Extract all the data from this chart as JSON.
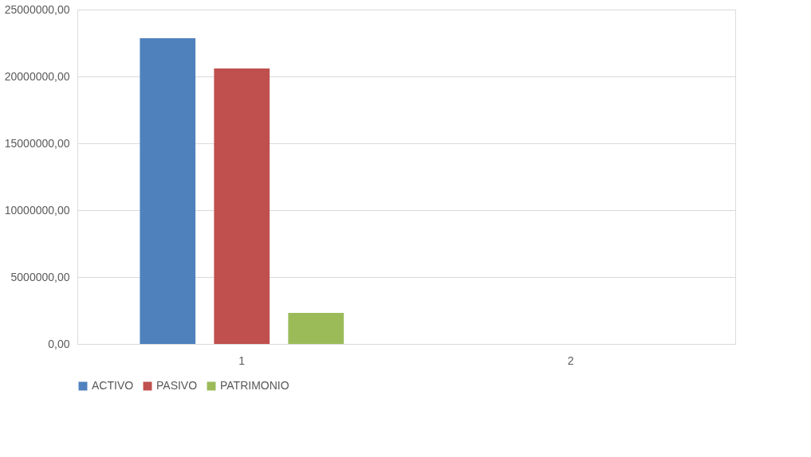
{
  "chart_data": {
    "type": "bar",
    "categories": [
      "1",
      "2"
    ],
    "series": [
      {
        "name": "ACTIVO",
        "color": "#4f81bd",
        "values": [
          22860000,
          null
        ]
      },
      {
        "name": "PASIVO",
        "color": "#c0504d",
        "values": [
          20600000,
          null
        ]
      },
      {
        "name": "PATRIMONIO",
        "color": "#9bbb59",
        "values": [
          2320000,
          null
        ]
      }
    ],
    "ylim": [
      0,
      25000000
    ],
    "yticks": [
      {
        "value": 0,
        "label": "0,00"
      },
      {
        "value": 5000000,
        "label": "5000000,00"
      },
      {
        "value": 10000000,
        "label": "10000000,00"
      },
      {
        "value": 15000000,
        "label": "15000000,00"
      },
      {
        "value": 20000000,
        "label": "20000000,00"
      },
      {
        "value": 25000000,
        "label": "25000000,00"
      }
    ],
    "grid": "y",
    "legend": "bottom"
  }
}
